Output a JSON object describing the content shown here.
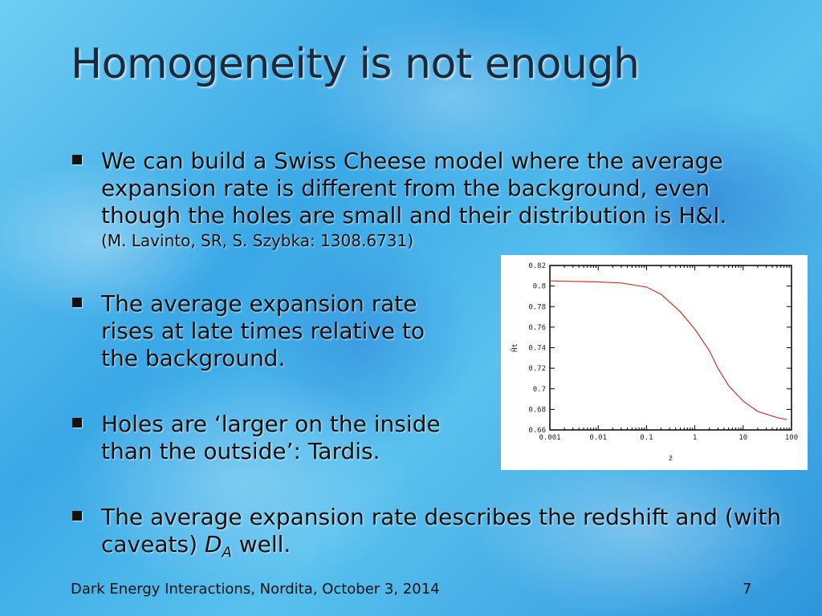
{
  "title": "Homogeneity is not enough",
  "bullets": [
    {
      "text": "We can build a Swiss Cheese model where the average expansion rate is different from the background, even though the holes are small and their distribution is H&I.",
      "citation": "(M. Lavinto, SR, S. Szybka: 1308.6731)"
    },
    {
      "text": "The average expansion rate rises at late times relative to the background."
    },
    {
      "text": "Holes are ‘larger on the inside than the outside’: Tardis."
    },
    {
      "text_before": "The average expansion rate describes the redshift and (with caveats) ",
      "math_D": "D",
      "math_sub": "A",
      "text_after": " well."
    }
  ],
  "footer": {
    "left": "Dark Energy Interactions, Nordita, October 3, 2014",
    "page": "7"
  },
  "chart_data": {
    "type": "line",
    "xlabel": "z̄",
    "ylabel": "H̄t",
    "xscale": "log",
    "xlim": [
      0.001,
      100
    ],
    "ylim": [
      0.66,
      0.82
    ],
    "xticks": [
      "0.001",
      "0.01",
      "0.1",
      "1",
      "10",
      "100"
    ],
    "yticks": [
      "0.66",
      "0.68",
      "0.7",
      "0.72",
      "0.74",
      "0.76",
      "0.78",
      "0.8",
      "0.82"
    ],
    "line_color": "#c0392b",
    "x": [
      0.001,
      0.01,
      0.03,
      0.1,
      0.2,
      0.5,
      1,
      2,
      3,
      5,
      10,
      20,
      50,
      80
    ],
    "y": [
      0.805,
      0.804,
      0.803,
      0.799,
      0.792,
      0.775,
      0.758,
      0.737,
      0.72,
      0.703,
      0.688,
      0.678,
      0.672,
      0.67
    ]
  }
}
